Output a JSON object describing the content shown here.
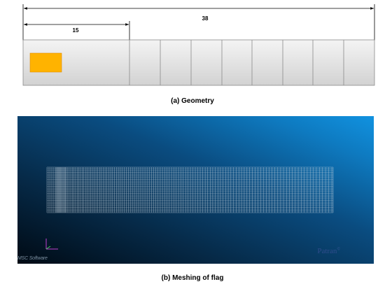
{
  "geometry": {
    "overall_dimension": "38",
    "flag_dimension": "15",
    "caption": "(a) Geometry",
    "colors": {
      "plate": "#dedede",
      "plate_border": "#8a8a8a",
      "highlight": "#ffb300"
    }
  },
  "meshing": {
    "caption": "(b) Meshing of flag",
    "logo_msc": "MSC Software",
    "logo_patran": "Patran",
    "colors": {
      "background_start": "#000a14",
      "background_end": "#1192e0",
      "mesh": "#c8d6e0"
    }
  }
}
